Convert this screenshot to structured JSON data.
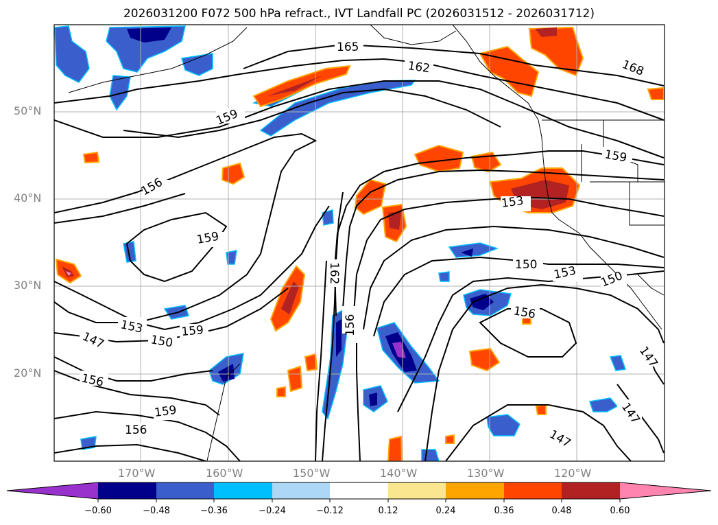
{
  "title": "2026031200 F072 500 hPa refract., IVT Landfall PC (2026031512 - 2026031712)",
  "lat_labels": [
    "50°N",
    "40°N",
    "30°N",
    "20°N"
  ],
  "lon_labels": [
    "170°W",
    "160°W",
    "150°W",
    "140°W",
    "130°W",
    "120°W"
  ],
  "contour_labels": [
    "165",
    "162",
    "168",
    "159",
    "159",
    "156",
    "153",
    "159",
    "162",
    "150",
    "153",
    "150",
    "156",
    "153",
    "150",
    "159",
    "147",
    "156",
    "156",
    "159",
    "156",
    "147",
    "147",
    "147"
  ],
  "colorbar": {
    "ticks": [
      "−0.60",
      "−0.48",
      "−0.36",
      "−0.24",
      "−0.12",
      "0.12",
      "0.24",
      "0.36",
      "0.48",
      "0.60"
    ],
    "colors": [
      "#9932cc",
      "#00008b",
      "#3a5fcd",
      "#00bfff",
      "#add8f5",
      "#ffffff",
      "#fbe690",
      "#ffa500",
      "#ff4500",
      "#b22222",
      "#ff85b0"
    ]
  }
}
